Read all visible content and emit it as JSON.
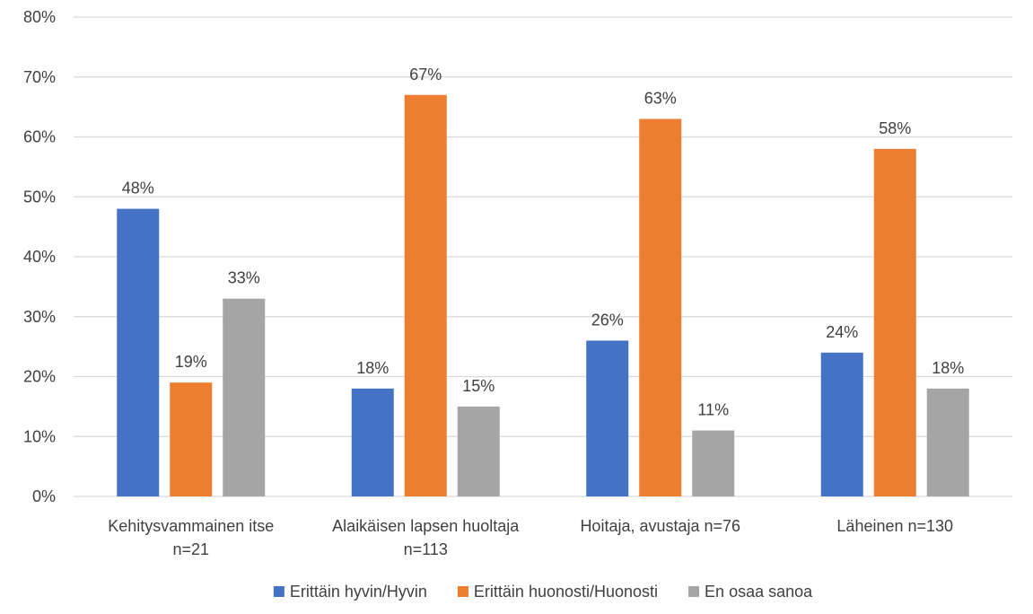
{
  "chart_data": {
    "type": "bar",
    "categories": [
      [
        "Kehitysvammainen itse",
        "n=21"
      ],
      [
        "Alaikäisen lapsen huoltaja",
        "n=113"
      ],
      [
        "Hoitaja, avustaja n=76"
      ],
      [
        "Läheinen n=130"
      ]
    ],
    "series": [
      {
        "name": "Erittäin hyvin/Hyvin",
        "color": "#4472C4",
        "values": [
          48,
          18,
          26,
          24
        ]
      },
      {
        "name": "Erittäin huonosti/Huonosti",
        "color": "#ED7D31",
        "values": [
          19,
          67,
          63,
          58
        ]
      },
      {
        "name": "En osaa sanoa",
        "color": "#A5A5A5",
        "values": [
          33,
          15,
          11,
          18
        ]
      }
    ],
    "value_suffix": "%",
    "ylim": [
      0,
      80
    ],
    "yticks": [
      0,
      10,
      20,
      30,
      40,
      50,
      60,
      70,
      80
    ],
    "ytick_labels": [
      "0%",
      "10%",
      "20%",
      "30%",
      "40%",
      "50%",
      "60%",
      "70%",
      "80%"
    ],
    "grid": true,
    "legend_position": "bottom",
    "title": "",
    "xlabel": "",
    "ylabel": ""
  }
}
